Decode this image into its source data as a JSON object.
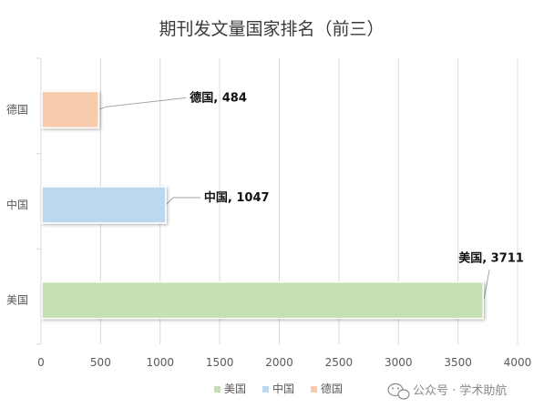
{
  "chart_data": {
    "type": "bar",
    "orientation": "horizontal",
    "title": "期刊发文量国家排名（前三）",
    "categories": [
      "美国",
      "中国",
      "德国"
    ],
    "values": [
      3711,
      1047,
      484
    ],
    "data_labels": [
      "美国, 3711",
      "中国, 1047",
      "德国, 484"
    ],
    "colors": [
      "#c6e0b4",
      "#bdd7ee",
      "#f8cbad"
    ],
    "xlim": [
      0,
      4000
    ],
    "x_ticks": [
      0,
      500,
      1000,
      1500,
      2000,
      2500,
      3000,
      3500,
      4000
    ],
    "grid": true,
    "legend": {
      "position": "bottom",
      "entries": [
        "美国",
        "中国",
        "德国"
      ]
    }
  },
  "watermark": {
    "icon": "wechat-icon",
    "text": "公众号 · 学术助航"
  }
}
